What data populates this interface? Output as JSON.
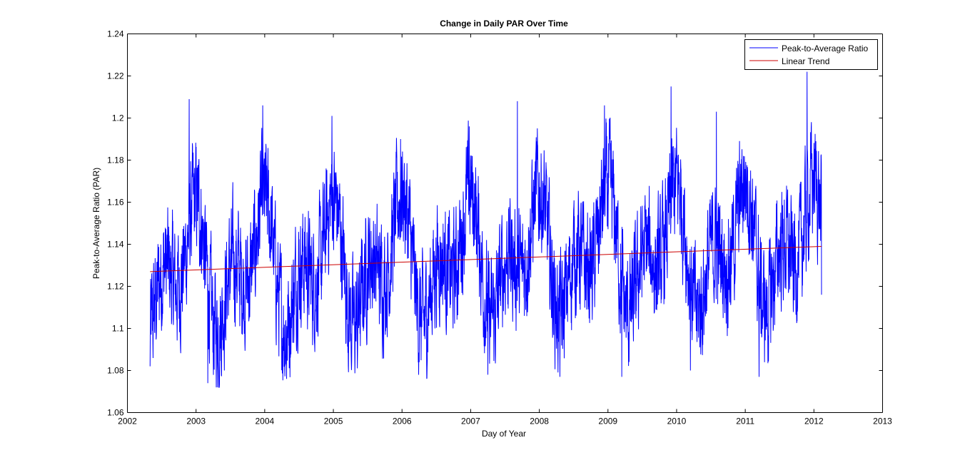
{
  "chart_data": {
    "type": "line",
    "title": "Change in Daily PAR Over Time",
    "xlabel": "Day of Year",
    "ylabel": "Peak-to-Average Ratio (PAR)",
    "xlim": [
      2002,
      2013
    ],
    "ylim": [
      1.06,
      1.24
    ],
    "xticks": [
      "2002",
      "2003",
      "2004",
      "2005",
      "2006",
      "2007",
      "2008",
      "2009",
      "2010",
      "2011",
      "2012",
      "2013"
    ],
    "yticks": [
      "1.06",
      "1.08",
      "1.1",
      "1.12",
      "1.14",
      "1.16",
      "1.18",
      "1.2",
      "1.22",
      "1.24"
    ],
    "grid": false,
    "legend_position": "top-right",
    "series": [
      {
        "name": "Peak-to-Average Ratio",
        "color": "#0000ff",
        "x_range": [
          2002.33,
          2012.11
        ],
        "points_per_year": 365,
        "seasonal": {
          "mean": 1.133,
          "trend_per_year": 0.0012,
          "amplitude": 0.03,
          "peak_phases": [
            0.92,
            0.52
          ],
          "noise_amplitude": 0.022
        },
        "key_points": [
          {
            "x": 2002.33,
            "y": 1.082
          },
          {
            "x": 2002.9,
            "y": 1.209
          },
          {
            "x": 2003.17,
            "y": 1.074
          },
          {
            "x": 2003.97,
            "y": 1.206
          },
          {
            "x": 2004.32,
            "y": 1.076
          },
          {
            "x": 2004.98,
            "y": 1.201
          },
          {
            "x": 2005.35,
            "y": 1.081
          },
          {
            "x": 2005.98,
            "y": 1.19
          },
          {
            "x": 2006.25,
            "y": 1.084
          },
          {
            "x": 2006.98,
            "y": 1.196
          },
          {
            "x": 2007.25,
            "y": 1.078
          },
          {
            "x": 2007.68,
            "y": 1.208
          },
          {
            "x": 2008.3,
            "y": 1.077
          },
          {
            "x": 2008.95,
            "y": 1.206
          },
          {
            "x": 2009.2,
            "y": 1.077
          },
          {
            "x": 2009.92,
            "y": 1.215
          },
          {
            "x": 2010.2,
            "y": 1.08
          },
          {
            "x": 2010.58,
            "y": 1.203
          },
          {
            "x": 2011.2,
            "y": 1.077
          },
          {
            "x": 2011.9,
            "y": 1.222
          },
          {
            "x": 2012.11,
            "y": 1.116
          }
        ]
      },
      {
        "name": "Linear Trend",
        "color": "#cc0000",
        "x": [
          2002.33,
          2012.11
        ],
        "y": [
          1.127,
          1.139
        ]
      }
    ]
  }
}
